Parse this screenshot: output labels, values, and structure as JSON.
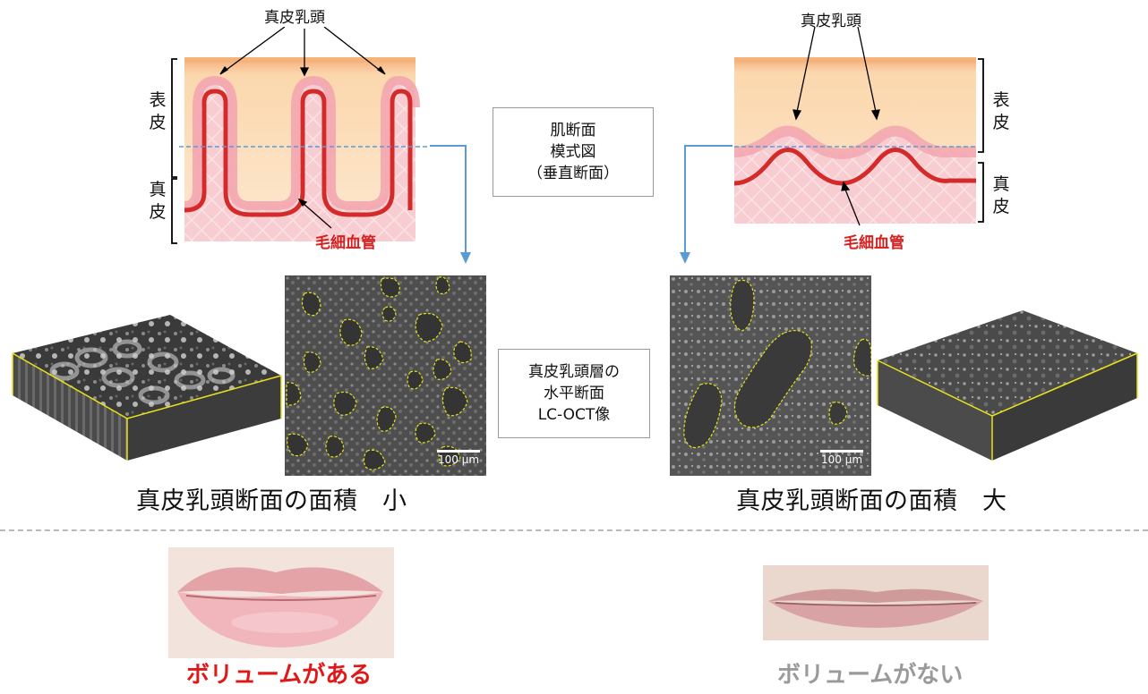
{
  "left_schematic": {
    "papilla_label": "真皮乳頭",
    "epidermis_label": "表\n皮",
    "dermis_label": "真\n皮",
    "capillary_label": "毛細血管"
  },
  "right_schematic": {
    "papilla_label": "真皮乳頭",
    "epidermis_label": "表\n皮",
    "dermis_label": "真\n皮",
    "capillary_label": "毛細血管"
  },
  "center_box_top": {
    "lines": [
      "肌断面",
      "模式図",
      "（垂直断面）"
    ]
  },
  "center_box_mid": {
    "lines": [
      "真皮乳頭層の",
      "水平断面",
      "LC-OCT像"
    ]
  },
  "scale_bar_left": "100 μm",
  "scale_bar_right": "100 μm",
  "caption_left": "真皮乳頭断面の面積　小",
  "caption_right": "真皮乳頭断面の面積　大",
  "volume_left": "ボリュームがある",
  "volume_right": "ボリュームがない",
  "colors": {
    "epidermis": "#f9cfa0",
    "dermis": "#f6c3c6",
    "capillary": "#d42a2a",
    "papilla_glow": "#ef9aa5",
    "guide_line": "#5b9bd5",
    "outline": "#e8e21c",
    "red_text": "#d42020",
    "gray_text": "#9a9a9a"
  }
}
